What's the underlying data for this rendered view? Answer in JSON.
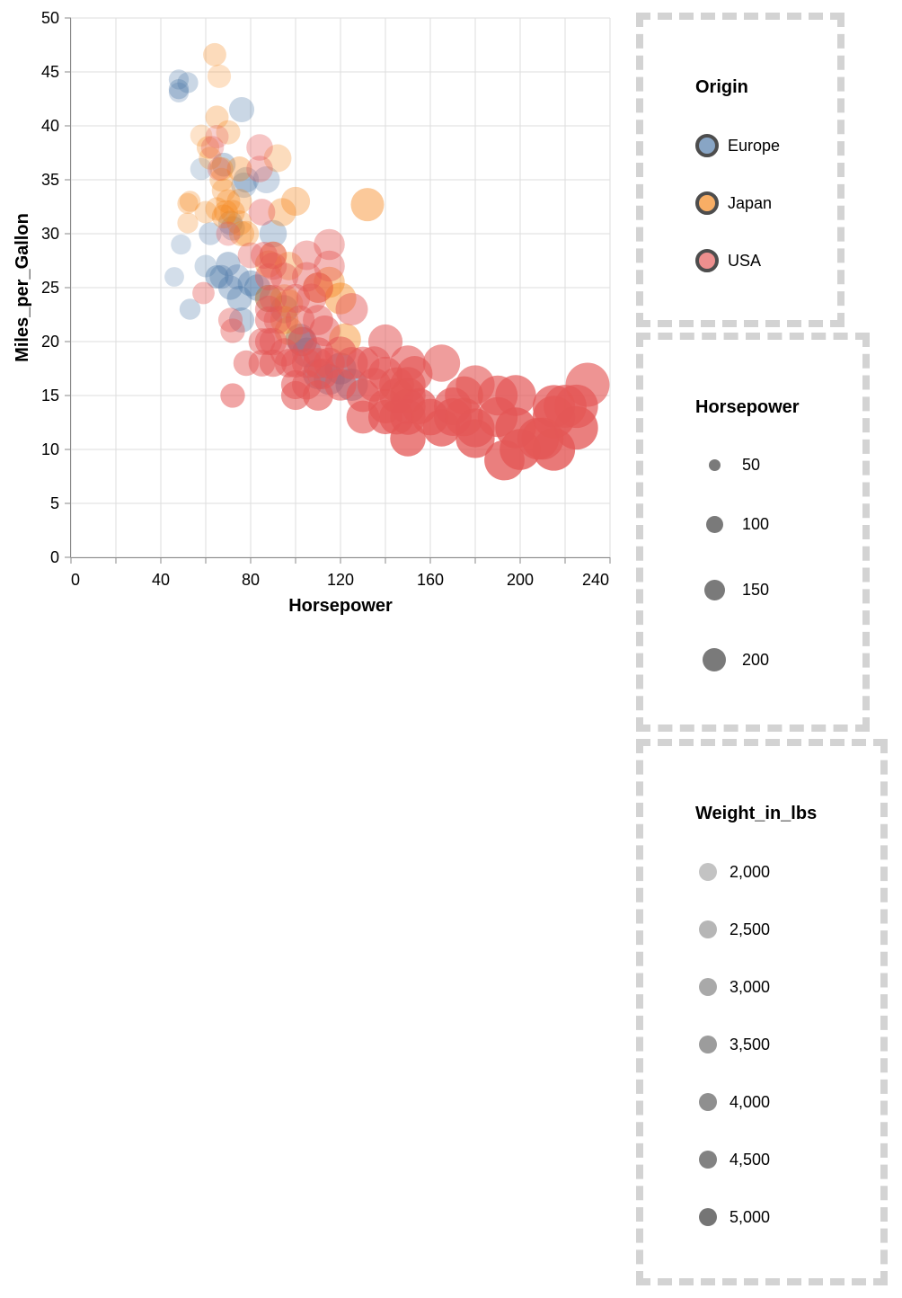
{
  "chart_data": {
    "type": "scatter",
    "xlabel": "Horsepower",
    "ylabel": "Miles_per_Gallon",
    "xlim": [
      0,
      240
    ],
    "ylim": [
      0,
      50
    ],
    "x_ticks": [
      "0",
      "40",
      "80",
      "120",
      "160",
      "200",
      "240"
    ],
    "y_ticks": [
      "0",
      "5",
      "10",
      "15",
      "20",
      "25",
      "30",
      "35",
      "40",
      "45",
      "50"
    ],
    "grid": true,
    "color_legend": {
      "title": "Origin",
      "items": [
        {
          "label": "Europe",
          "color": "#4c78a8"
        },
        {
          "label": "Japan",
          "color": "#f58518"
        },
        {
          "label": "USA",
          "color": "#e45756"
        }
      ]
    },
    "size_legend": {
      "title": "Horsepower",
      "items": [
        {
          "label": "50",
          "value": 50
        },
        {
          "label": "100",
          "value": 100
        },
        {
          "label": "150",
          "value": 150
        },
        {
          "label": "200",
          "value": 200
        }
      ]
    },
    "opacity_legend": {
      "title": "Weight_in_lbs",
      "items": [
        {
          "label": "2,000",
          "value": 2000
        },
        {
          "label": "2,500",
          "value": 2500
        },
        {
          "label": "3,000",
          "value": 3000
        },
        {
          "label": "3,500",
          "value": 3500
        },
        {
          "label": "4,000",
          "value": 4000
        },
        {
          "label": "4,500",
          "value": 4500
        },
        {
          "label": "5,000",
          "value": 5000
        }
      ]
    },
    "series": [
      {
        "origin": "Europe",
        "points": [
          {
            "x": 46,
            "y": 26,
            "w": 1835
          },
          {
            "x": 48,
            "y": 44.3,
            "w": 2085
          },
          {
            "x": 48,
            "y": 43.4,
            "w": 2335
          },
          {
            "x": 48,
            "y": 43.1,
            "w": 1985
          },
          {
            "x": 52,
            "y": 44,
            "w": 2130
          },
          {
            "x": 49,
            "y": 29,
            "w": 1867
          },
          {
            "x": 53,
            "y": 23,
            "w": 2110
          },
          {
            "x": 60,
            "y": 27,
            "w": 1940
          },
          {
            "x": 58,
            "y": 36,
            "w": 1825
          },
          {
            "x": 62,
            "y": 30,
            "w": 2070
          },
          {
            "x": 65,
            "y": 26,
            "w": 2670
          },
          {
            "x": 67,
            "y": 26,
            "w": 2375
          },
          {
            "x": 68,
            "y": 36.4,
            "w": 2380
          },
          {
            "x": 70,
            "y": 27.2,
            "w": 2565
          },
          {
            "x": 71,
            "y": 25,
            "w": 2490
          },
          {
            "x": 71,
            "y": 31,
            "w": 2220
          },
          {
            "x": 72,
            "y": 30.5,
            "w": 2158
          },
          {
            "x": 74,
            "y": 26,
            "w": 2290
          },
          {
            "x": 75,
            "y": 24,
            "w": 2545
          },
          {
            "x": 76,
            "y": 41.5,
            "w": 2144
          },
          {
            "x": 76,
            "y": 22,
            "w": 2511
          },
          {
            "x": 77,
            "y": 34.5,
            "w": 2020
          },
          {
            "x": 78,
            "y": 35,
            "w": 2190
          },
          {
            "x": 80,
            "y": 25.4,
            "w": 2670
          },
          {
            "x": 83,
            "y": 25,
            "w": 2700
          },
          {
            "x": 87,
            "y": 35,
            "w": 2035
          },
          {
            "x": 88,
            "y": 24,
            "w": 2830
          },
          {
            "x": 90,
            "y": 30,
            "w": 2250
          },
          {
            "x": 95,
            "y": 23,
            "w": 2600
          },
          {
            "x": 102,
            "y": 20.3,
            "w": 3012
          },
          {
            "x": 103,
            "y": 20,
            "w": 3190
          },
          {
            "x": 105,
            "y": 19,
            "w": 2950
          },
          {
            "x": 110,
            "y": 17,
            "w": 3400
          },
          {
            "x": 115,
            "y": 16.5,
            "w": 3160
          },
          {
            "x": 120,
            "y": 17.5,
            "w": 3600
          },
          {
            "x": 125,
            "y": 16,
            "w": 3300
          }
        ]
      },
      {
        "origin": "Japan",
        "points": [
          {
            "x": 52,
            "y": 31,
            "w": 1960
          },
          {
            "x": 52,
            "y": 32.8,
            "w": 2130
          },
          {
            "x": 53,
            "y": 33,
            "w": 2120
          },
          {
            "x": 58,
            "y": 39.1,
            "w": 1755
          },
          {
            "x": 60,
            "y": 32,
            "w": 1990
          },
          {
            "x": 61,
            "y": 38,
            "w": 2125
          },
          {
            "x": 62,
            "y": 37,
            "w": 2050
          },
          {
            "x": 64,
            "y": 46.6,
            "w": 2110
          },
          {
            "x": 65,
            "y": 32.3,
            "w": 2145
          },
          {
            "x": 65,
            "y": 40.8,
            "w": 2110
          },
          {
            "x": 66,
            "y": 44.6,
            "w": 1850
          },
          {
            "x": 67,
            "y": 36,
            "w": 2300
          },
          {
            "x": 67,
            "y": 35,
            "w": 2130
          },
          {
            "x": 68,
            "y": 34,
            "w": 2100
          },
          {
            "x": 68,
            "y": 31.6,
            "w": 2340
          },
          {
            "x": 69,
            "y": 32,
            "w": 2200
          },
          {
            "x": 70,
            "y": 39.4,
            "w": 2070
          },
          {
            "x": 70,
            "y": 33,
            "w": 2310
          },
          {
            "x": 72,
            "y": 32,
            "w": 2280
          },
          {
            "x": 75,
            "y": 31,
            "w": 2190
          },
          {
            "x": 75,
            "y": 33,
            "w": 2265
          },
          {
            "x": 75,
            "y": 36,
            "w": 2380
          },
          {
            "x": 76,
            "y": 30,
            "w": 2220
          },
          {
            "x": 78,
            "y": 30,
            "w": 2200
          },
          {
            "x": 88,
            "y": 24,
            "w": 2500
          },
          {
            "x": 88,
            "y": 27.2,
            "w": 2606
          },
          {
            "x": 90,
            "y": 28,
            "w": 2350
          },
          {
            "x": 92,
            "y": 37,
            "w": 2080
          },
          {
            "x": 94,
            "y": 32,
            "w": 2379
          },
          {
            "x": 95,
            "y": 24,
            "w": 2372
          },
          {
            "x": 95,
            "y": 22,
            "w": 2625
          },
          {
            "x": 97,
            "y": 27,
            "w": 2405
          },
          {
            "x": 97,
            "y": 23.5,
            "w": 2300
          },
          {
            "x": 97,
            "y": 21,
            "w": 2550
          },
          {
            "x": 100,
            "y": 33,
            "w": 2420
          },
          {
            "x": 110,
            "y": 25,
            "w": 2720
          },
          {
            "x": 115,
            "y": 25.5,
            "w": 2750
          },
          {
            "x": 120,
            "y": 24,
            "w": 2930
          },
          {
            "x": 122,
            "y": 20.2,
            "w": 2900
          },
          {
            "x": 132,
            "y": 32.7,
            "w": 2910
          }
        ]
      },
      {
        "origin": "USA",
        "points": [
          {
            "x": 72,
            "y": 15,
            "w": 3430
          },
          {
            "x": 59,
            "y": 24.5,
            "w": 2640
          },
          {
            "x": 63,
            "y": 38,
            "w": 2160
          },
          {
            "x": 65,
            "y": 39,
            "w": 2050
          },
          {
            "x": 66,
            "y": 36,
            "w": 2120
          },
          {
            "x": 70,
            "y": 30,
            "w": 2230
          },
          {
            "x": 71,
            "y": 22,
            "w": 2700
          },
          {
            "x": 72,
            "y": 21,
            "w": 2800
          },
          {
            "x": 78,
            "y": 18,
            "w": 3130
          },
          {
            "x": 80,
            "y": 28,
            "w": 2500
          },
          {
            "x": 84,
            "y": 38,
            "w": 2385
          },
          {
            "x": 84,
            "y": 36,
            "w": 2370
          },
          {
            "x": 85,
            "y": 32,
            "w": 2600
          },
          {
            "x": 85,
            "y": 18,
            "w": 3160
          },
          {
            "x": 85,
            "y": 20,
            "w": 3070
          },
          {
            "x": 86,
            "y": 28,
            "w": 2790
          },
          {
            "x": 88,
            "y": 20,
            "w": 3270
          },
          {
            "x": 88,
            "y": 26,
            "w": 2870
          },
          {
            "x": 88,
            "y": 22,
            "w": 3060
          },
          {
            "x": 88,
            "y": 23,
            "w": 2980
          },
          {
            "x": 90,
            "y": 28,
            "w": 2900
          },
          {
            "x": 90,
            "y": 24,
            "w": 2670
          },
          {
            "x": 90,
            "y": 20,
            "w": 3100
          },
          {
            "x": 90,
            "y": 18,
            "w": 3460
          },
          {
            "x": 90,
            "y": 27,
            "w": 2800
          },
          {
            "x": 92,
            "y": 22,
            "w": 2900
          },
          {
            "x": 95,
            "y": 19,
            "w": 3300
          },
          {
            "x": 95,
            "y": 26,
            "w": 2800
          },
          {
            "x": 97,
            "y": 18,
            "w": 3400
          },
          {
            "x": 100,
            "y": 18,
            "w": 3400
          },
          {
            "x": 100,
            "y": 16,
            "w": 3600
          },
          {
            "x": 100,
            "y": 15,
            "w": 3700
          },
          {
            "x": 100,
            "y": 24,
            "w": 2900
          },
          {
            "x": 102,
            "y": 22,
            "w": 3200
          },
          {
            "x": 103,
            "y": 20,
            "w": 3200
          },
          {
            "x": 105,
            "y": 18,
            "w": 3400
          },
          {
            "x": 105,
            "y": 28,
            "w": 2700
          },
          {
            "x": 105,
            "y": 16,
            "w": 3500
          },
          {
            "x": 105,
            "y": 26,
            "w": 2900
          },
          {
            "x": 107,
            "y": 24,
            "w": 2900
          },
          {
            "x": 110,
            "y": 19,
            "w": 3600
          },
          {
            "x": 110,
            "y": 15,
            "w": 3900
          },
          {
            "x": 110,
            "y": 18,
            "w": 3600
          },
          {
            "x": 110,
            "y": 22,
            "w": 3200
          },
          {
            "x": 110,
            "y": 25,
            "w": 3000
          },
          {
            "x": 112,
            "y": 17,
            "w": 3700
          },
          {
            "x": 113,
            "y": 21,
            "w": 3300
          },
          {
            "x": 115,
            "y": 29,
            "w": 2700
          },
          {
            "x": 115,
            "y": 18,
            "w": 3600
          },
          {
            "x": 115,
            "y": 27,
            "w": 2800
          },
          {
            "x": 120,
            "y": 19,
            "w": 3600
          },
          {
            "x": 120,
            "y": 16,
            "w": 3800
          },
          {
            "x": 125,
            "y": 23,
            "w": 3100
          },
          {
            "x": 125,
            "y": 18,
            "w": 3700
          },
          {
            "x": 130,
            "y": 13,
            "w": 4000
          },
          {
            "x": 130,
            "y": 18,
            "w": 3500
          },
          {
            "x": 130,
            "y": 15,
            "w": 4000
          },
          {
            "x": 135,
            "y": 16,
            "w": 3800
          },
          {
            "x": 135,
            "y": 18,
            "w": 3600
          },
          {
            "x": 140,
            "y": 14,
            "w": 4200
          },
          {
            "x": 140,
            "y": 20,
            "w": 3500
          },
          {
            "x": 140,
            "y": 17,
            "w": 3800
          },
          {
            "x": 140,
            "y": 13,
            "w": 4300
          },
          {
            "x": 145,
            "y": 16,
            "w": 3900
          },
          {
            "x": 145,
            "y": 13,
            "w": 4400
          },
          {
            "x": 145,
            "y": 15,
            "w": 4100
          },
          {
            "x": 150,
            "y": 15,
            "w": 4100
          },
          {
            "x": 150,
            "y": 14,
            "w": 4300
          },
          {
            "x": 150,
            "y": 11,
            "w": 4600
          },
          {
            "x": 150,
            "y": 18,
            "w": 3800
          },
          {
            "x": 150,
            "y": 16,
            "w": 4000
          },
          {
            "x": 150,
            "y": 13,
            "w": 4500
          },
          {
            "x": 153,
            "y": 17,
            "w": 3900
          },
          {
            "x": 155,
            "y": 14,
            "w": 4300
          },
          {
            "x": 160,
            "y": 13,
            "w": 4400
          },
          {
            "x": 165,
            "y": 12,
            "w": 4600
          },
          {
            "x": 165,
            "y": 18,
            "w": 3700
          },
          {
            "x": 170,
            "y": 14,
            "w": 4300
          },
          {
            "x": 170,
            "y": 13,
            "w": 4500
          },
          {
            "x": 175,
            "y": 15,
            "w": 4200
          },
          {
            "x": 175,
            "y": 13,
            "w": 4400
          },
          {
            "x": 180,
            "y": 11,
            "w": 4700
          },
          {
            "x": 180,
            "y": 16,
            "w": 3900
          },
          {
            "x": 180,
            "y": 12,
            "w": 4500
          },
          {
            "x": 190,
            "y": 15,
            "w": 4200
          },
          {
            "x": 190,
            "y": 13,
            "w": 4400
          },
          {
            "x": 193,
            "y": 9,
            "w": 4700
          },
          {
            "x": 198,
            "y": 12,
            "w": 4900
          },
          {
            "x": 198,
            "y": 15,
            "w": 4300
          },
          {
            "x": 200,
            "y": 10,
            "w": 4900
          },
          {
            "x": 208,
            "y": 11,
            "w": 4700
          },
          {
            "x": 210,
            "y": 11,
            "w": 4600
          },
          {
            "x": 215,
            "y": 14,
            "w": 4500
          },
          {
            "x": 215,
            "y": 13,
            "w": 4600
          },
          {
            "x": 215,
            "y": 10,
            "w": 4900
          },
          {
            "x": 220,
            "y": 14,
            "w": 4400
          },
          {
            "x": 225,
            "y": 14,
            "w": 4400
          },
          {
            "x": 225,
            "y": 12,
            "w": 4700
          },
          {
            "x": 230,
            "y": 16,
            "w": 4000
          }
        ]
      }
    ]
  }
}
